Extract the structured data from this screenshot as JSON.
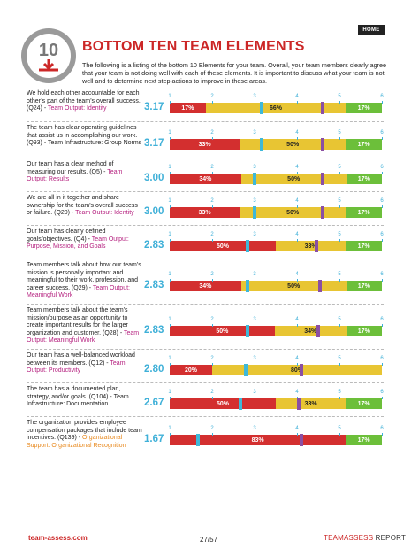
{
  "header": {
    "home_label": "HOME",
    "badge_number": "10",
    "title": "BOTTOM TEN TEAM ELEMENTS",
    "intro": "The following is a listing of the bottom 10 Elements for your team. Overall, your team members clearly agree that your team is not doing well with each of these elements. It is important to discuss what your team is not well and to determine next step actions to improve in these areas."
  },
  "colors": {
    "title_red": "#cc2727",
    "disagree": "#d32f2f",
    "neutral": "#e8c533",
    "agree": "#6cbf3a",
    "team_marker": "#3fb8d8",
    "benchmark_marker": "#8a4fa3",
    "category_magenta": "#b5217f",
    "category_orange": "#e8891e"
  },
  "scale_ticks": [
    "1",
    "2",
    "3",
    "4",
    "5",
    "6"
  ],
  "items": [
    {
      "text": "We hold each other accountable for each other’s part of the team’s overall success. (Q24) - ",
      "category": "Team Output: Identity",
      "cat_color": "blue",
      "avg": "3.17",
      "avg_value": 3.17,
      "bench_value": 4.6,
      "red": 17,
      "yellow": 66,
      "green": 17,
      "red_label": "17%",
      "yellow_label": "66%",
      "green_label": "17%"
    },
    {
      "text": "The team has clear operating guidelines that assist us in accomplishing our work. (Q93) - Team Infrastructure: Group Norms",
      "category": "",
      "cat_color": "blue",
      "avg": "3.17",
      "avg_value": 3.17,
      "bench_value": 4.6,
      "red": 33,
      "yellow": 50,
      "green": 17,
      "red_label": "33%",
      "yellow_label": "50%",
      "green_label": "17%"
    },
    {
      "text": "Our team has a clear method of measuring our results. (Q5) - ",
      "category": "Team Output: Results",
      "cat_color": "blue",
      "avg": "3.00",
      "avg_value": 3.0,
      "bench_value": 4.6,
      "red": 34,
      "yellow": 50,
      "green": 17,
      "red_label": "34%",
      "yellow_label": "50%",
      "green_label": "17%"
    },
    {
      "text": "We are all in it together and share ownership for the team's overall success or failure. (Q20) - ",
      "category": "Team Output: Identity",
      "cat_color": "blue",
      "avg": "3.00",
      "avg_value": 3.0,
      "bench_value": 4.6,
      "red": 33,
      "yellow": 50,
      "green": 17,
      "red_label": "33%",
      "yellow_label": "50%",
      "green_label": "17%"
    },
    {
      "text": "Our team has clearly defined goals/objectives. (Q4) - ",
      "category": "Team Output: Purpose, Mission, and Goals",
      "cat_color": "blue",
      "avg": "2.83",
      "avg_value": 2.83,
      "bench_value": 4.45,
      "red": 50,
      "yellow": 33,
      "green": 17,
      "red_label": "50%",
      "yellow_label": "33%",
      "green_label": "17%"
    },
    {
      "text": "Team members talk about how our team's mission is personally important and meaningful to their work, profession, and career success. (Q29) - ",
      "category": "Team Output: Meaningful Work",
      "cat_color": "blue",
      "avg": "2.83",
      "avg_value": 2.83,
      "bench_value": 4.55,
      "red": 34,
      "yellow": 50,
      "green": 17,
      "red_label": "34%",
      "yellow_label": "50%",
      "green_label": "17%"
    },
    {
      "text": "Team members talk about the team's mission/purpose as an opportunity to create important results for the larger organization and customer. (Q28) - ",
      "category": "Team Output: Meaningful Work",
      "cat_color": "blue",
      "avg": "2.83",
      "avg_value": 2.83,
      "bench_value": 4.5,
      "red": 50,
      "yellow": 34,
      "green": 17,
      "red_label": "50%",
      "yellow_label": "34%",
      "green_label": "17%"
    },
    {
      "text": "Our team has a well-balanced workload between its members. (Q12) - ",
      "category": "Team Output: Productivity",
      "cat_color": "blue",
      "avg": "2.80",
      "avg_value": 2.8,
      "bench_value": 4.1,
      "red": 20,
      "yellow": 80,
      "green": 0,
      "red_label": "20%",
      "yellow_label": "80%",
      "green_label": ""
    },
    {
      "text": "The team has a documented plan, strategy, and/or goals. (Q104) - Team Infrastructure: Documentation",
      "category": "",
      "cat_color": "blue",
      "avg": "2.67",
      "avg_value": 2.67,
      "bench_value": 4.05,
      "red": 50,
      "yellow": 33,
      "green": 17,
      "red_label": "50%",
      "yellow_label": "33%",
      "green_label": "17%"
    },
    {
      "text": "The organization provides employee compensation packages that include team incentives. (Q139) - ",
      "category": "Organizational Support: Organizational Recognition",
      "cat_color": "orange",
      "avg": "1.67",
      "avg_value": 1.67,
      "bench_value": 4.1,
      "red": 83,
      "yellow": 0,
      "green": 17,
      "red_label": "83%",
      "yellow_label": "",
      "green_label": "17%"
    }
  ],
  "footer": {
    "url": "team-assess.com",
    "page": "27/57",
    "brand_a": "TEAMASSESS",
    "brand_b": " REPORT"
  }
}
